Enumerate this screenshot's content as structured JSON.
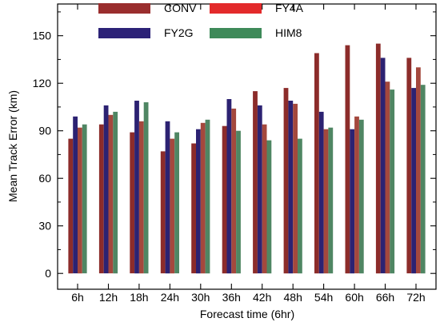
{
  "chart_data": {
    "type": "bar",
    "xlabel": "Forecast time (6hr)",
    "ylabel": "Mean Track Error (km)",
    "categories": [
      "6h",
      "12h",
      "18h",
      "24h",
      "30h",
      "36h",
      "42h",
      "48h",
      "54h",
      "60h",
      "66h",
      "72h"
    ],
    "ylim": [
      -10,
      170
    ],
    "yticks": [
      0,
      30,
      60,
      90,
      120,
      150
    ],
    "grid": false,
    "legend_position": "top",
    "series": [
      {
        "name": "CONV",
        "color": "#9A2E2E",
        "bar_color": "#8C2C2A",
        "values": [
          85,
          94,
          89,
          77,
          82,
          93,
          115,
          117,
          139,
          144,
          145,
          136
        ]
      },
      {
        "name": "FY2G",
        "color": "#2C2277",
        "bar_color": "#2C2272",
        "values": [
          99,
          106,
          109,
          96,
          91,
          110,
          106,
          109,
          102,
          91,
          136,
          117
        ]
      },
      {
        "name": "FY4A",
        "color": "#E32A2B",
        "bar_color": "#A4483D",
        "values": [
          92,
          100,
          96,
          85,
          95,
          104,
          94,
          107,
          91,
          99,
          121,
          130
        ]
      },
      {
        "name": "HIM8",
        "color": "#3E8A59",
        "bar_color": "#4F8663",
        "values": [
          94,
          102,
          108,
          89,
          97,
          90,
          84,
          85,
          92,
          97,
          116,
          119
        ]
      }
    ]
  }
}
